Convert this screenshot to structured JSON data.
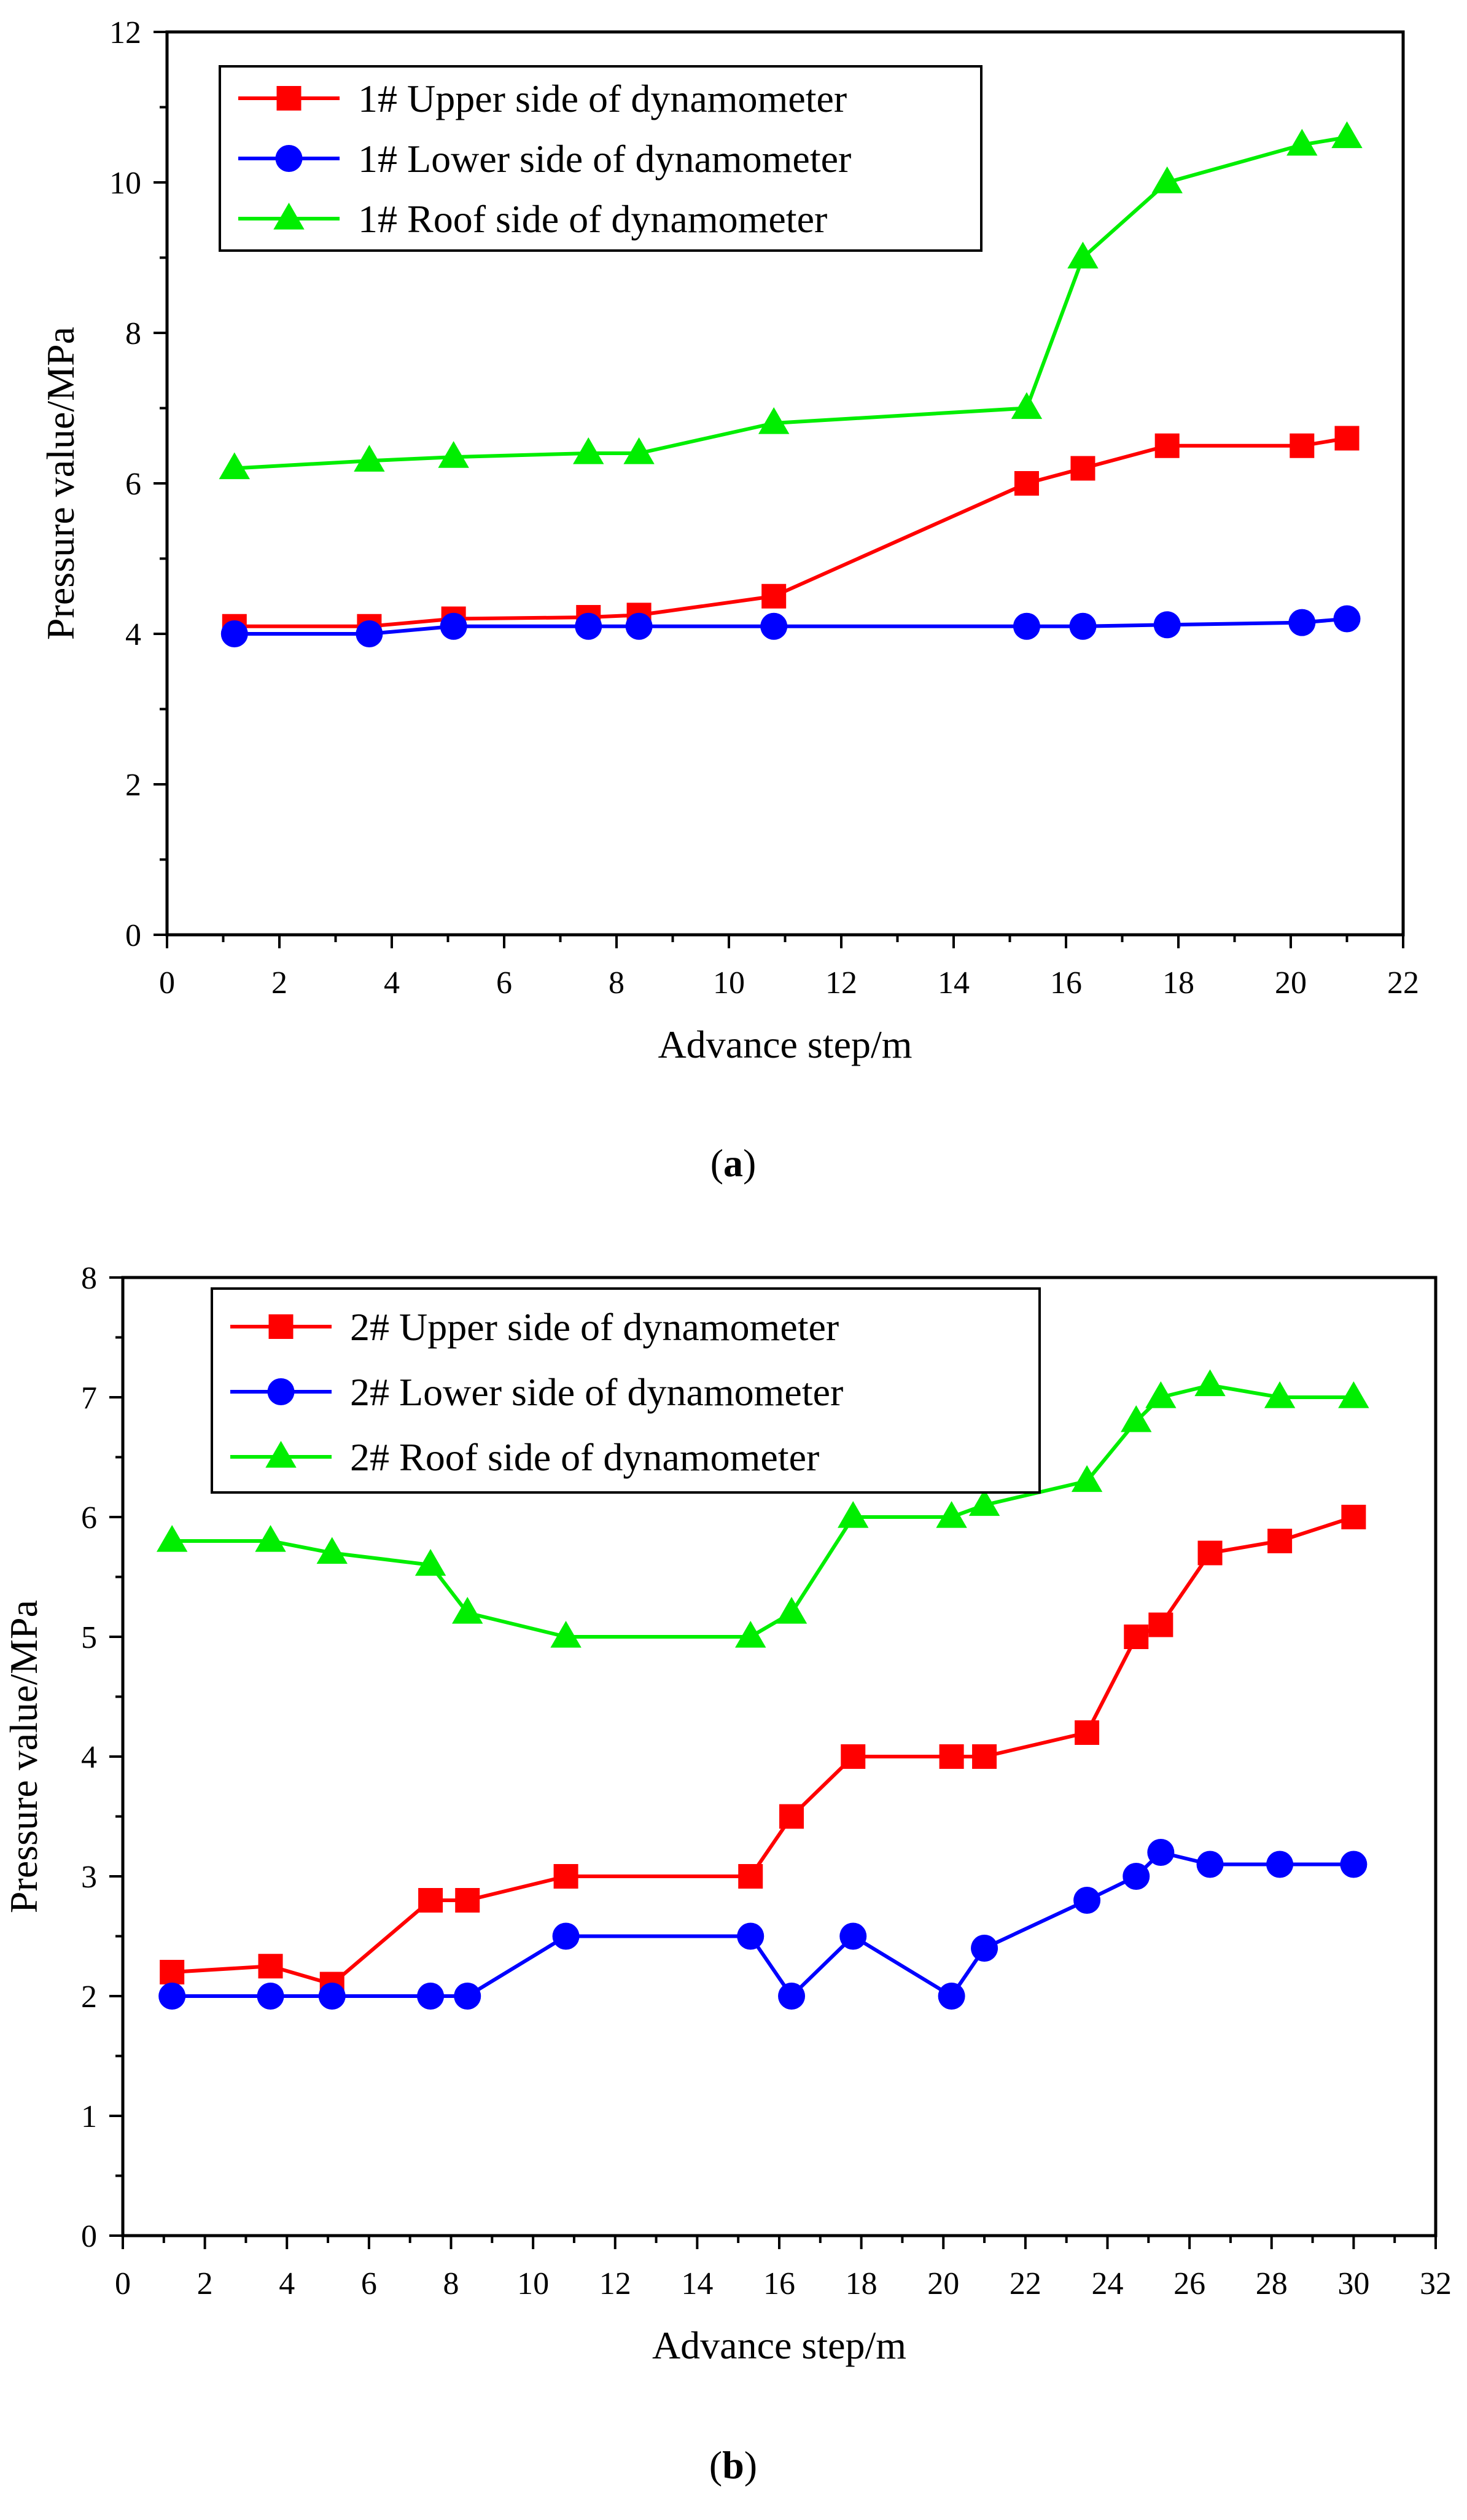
{
  "chart_data": [
    {
      "type": "line",
      "panel_label": "a",
      "xlabel": "Advance step/m",
      "ylabel": "Pressure value/MPa",
      "xlim": [
        0,
        22
      ],
      "ylim": [
        0,
        12
      ],
      "xticks": [
        0,
        2,
        4,
        6,
        8,
        10,
        12,
        14,
        16,
        18,
        20,
        22
      ],
      "yticks": [
        0,
        2,
        4,
        6,
        8,
        10,
        12
      ],
      "legend_position": "top-left",
      "series": [
        {
          "name": "1# Upper side of dynamometer",
          "color": "#ff0000",
          "marker": "square",
          "x": [
            1.2,
            3.6,
            5.1,
            7.5,
            8.4,
            10.8,
            15.3,
            16.3,
            17.8,
            20.2,
            21.0
          ],
          "y": [
            4.1,
            4.1,
            4.2,
            4.22,
            4.25,
            4.5,
            6.0,
            6.2,
            6.5,
            6.5,
            6.6
          ]
        },
        {
          "name": "1# Lower side of dynamometer",
          "color": "#0000ff",
          "marker": "circle",
          "x": [
            1.2,
            3.6,
            5.1,
            7.5,
            8.4,
            10.8,
            15.3,
            16.3,
            17.8,
            20.2,
            21.0
          ],
          "y": [
            4.0,
            4.0,
            4.1,
            4.1,
            4.1,
            4.1,
            4.1,
            4.1,
            4.12,
            4.15,
            4.2
          ]
        },
        {
          "name": "1# Roof  side of dynamometer",
          "color": "#00ee00",
          "marker": "triangle",
          "x": [
            1.2,
            3.6,
            5.1,
            7.5,
            8.4,
            10.8,
            15.3,
            16.3,
            17.8,
            20.2,
            21.0
          ],
          "y": [
            6.2,
            6.3,
            6.35,
            6.4,
            6.4,
            6.8,
            7.0,
            9.0,
            10.0,
            10.5,
            10.6
          ]
        }
      ]
    },
    {
      "type": "line",
      "panel_label": "b",
      "xlabel": "Advance step/m",
      "ylabel": "Pressure value/MPa",
      "xlim": [
        0,
        32
      ],
      "ylim": [
        0,
        8
      ],
      "xticks": [
        0,
        2,
        4,
        6,
        8,
        10,
        12,
        14,
        16,
        18,
        20,
        22,
        24,
        26,
        28,
        30,
        32
      ],
      "yticks": [
        0,
        1,
        2,
        3,
        4,
        5,
        6,
        7,
        8
      ],
      "legend_position": "top-left",
      "series": [
        {
          "name": "2# Upper side of dynamometer",
          "color": "#ff0000",
          "marker": "square",
          "x": [
            1.2,
            3.6,
            5.1,
            7.5,
            8.4,
            10.8,
            15.3,
            16.3,
            17.8,
            20.2,
            21.0,
            23.5,
            24.7,
            25.3,
            26.5,
            28.2,
            30.0
          ],
          "y": [
            2.2,
            2.25,
            2.1,
            2.8,
            2.8,
            3.0,
            3.0,
            3.5,
            4.0,
            4.0,
            4.0,
            4.2,
            5.0,
            5.1,
            5.7,
            5.8,
            6.0
          ]
        },
        {
          "name": "2# Lower side of dynamometer",
          "color": "#0000ff",
          "marker": "circle",
          "x": [
            1.2,
            3.6,
            5.1,
            7.5,
            8.4,
            10.8,
            15.3,
            16.3,
            17.8,
            20.2,
            21.0,
            23.5,
            24.7,
            25.3,
            26.5,
            28.2,
            30.0
          ],
          "y": [
            2.0,
            2.0,
            2.0,
            2.0,
            2.0,
            2.5,
            2.5,
            2.0,
            2.5,
            2.0,
            2.4,
            2.8,
            3.0,
            3.2,
            3.1,
            3.1,
            3.1
          ]
        },
        {
          "name": "2# Roof  side of dynamometer",
          "color": "#00ee00",
          "marker": "triangle",
          "x": [
            1.2,
            3.6,
            5.1,
            7.5,
            8.4,
            10.8,
            15.3,
            16.3,
            17.8,
            20.2,
            21.0,
            23.5,
            24.7,
            25.3,
            26.5,
            28.2,
            30.0
          ],
          "y": [
            5.8,
            5.8,
            5.7,
            5.6,
            5.2,
            5.0,
            5.0,
            5.2,
            6.0,
            6.0,
            6.1,
            6.3,
            6.8,
            7.0,
            7.1,
            7.0,
            7.0
          ]
        }
      ]
    }
  ]
}
